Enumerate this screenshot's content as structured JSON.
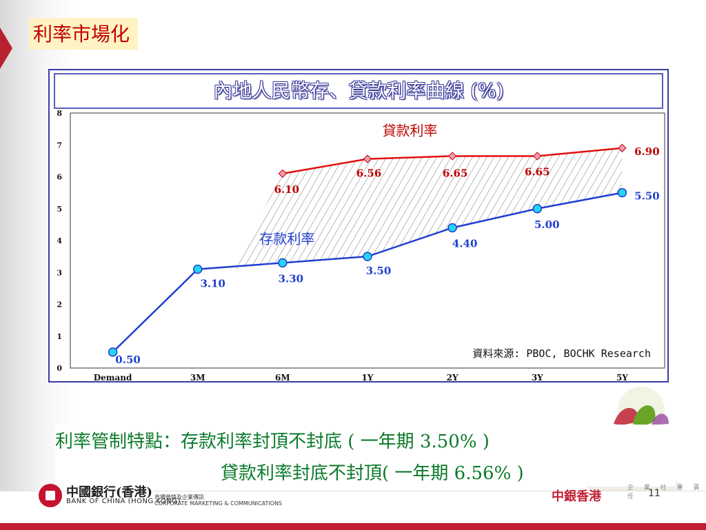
{
  "slide": {
    "title": "利率市場化",
    "page_number": "11"
  },
  "chart_data": {
    "type": "line",
    "title": "內地人民幣存、貸款利率曲線 (%)",
    "categories": [
      "Demand",
      "3M",
      "6M",
      "1Y",
      "2Y",
      "3Y",
      "5Y"
    ],
    "ylim": [
      0,
      8
    ],
    "yticks": [
      0,
      1,
      2,
      3,
      4,
      5,
      6,
      7,
      8
    ],
    "grid": false,
    "series": [
      {
        "name": "存款利率",
        "color": "#1f3fd0",
        "label_color": "#1f3fd0",
        "values": [
          0.5,
          3.1,
          3.3,
          3.5,
          4.4,
          5.0,
          5.5
        ],
        "labels": [
          "0.50",
          "3.10",
          "3.30",
          "3.50",
          "4.40",
          "5.00",
          "5.50"
        ]
      },
      {
        "name": "貸款利率",
        "color": "#e01010",
        "label_color": "#c00000",
        "values": [
          null,
          null,
          6.1,
          6.56,
          6.65,
          6.65,
          6.9
        ],
        "labels": [
          "",
          "",
          "6.10",
          "6.56",
          "6.65",
          "6.65",
          "6.90"
        ]
      }
    ],
    "annotation": "資料來源: PBOC, BOCHK Research",
    "shaded_area": "between deposit and loan curves from 6M to 5Y"
  },
  "notes": {
    "line1": "利率管制特點：存款利率封頂不封底 ( 一年期 3.50% )",
    "line2": "貸款利率封底不封頂( 一年期 6.56% )"
  },
  "footer": {
    "boc_name_cn": "中國銀行(香港)",
    "boc_name_en": "BANK OF CHINA (HONG KONG)",
    "dept_cn": "市場營銷及企業傳訊",
    "dept_en": "CORPORATE MARKETING & COMMUNICATIONS",
    "brand_hk": "中銀香港",
    "csr_label": "企 業 社 會 責 任"
  },
  "colors": {
    "title_red": "#c00000",
    "title_bg": "#fff3c4",
    "frame_blue": "#3a3aa0",
    "note_green": "#0a7a2a",
    "footer_red": "#c02032"
  }
}
